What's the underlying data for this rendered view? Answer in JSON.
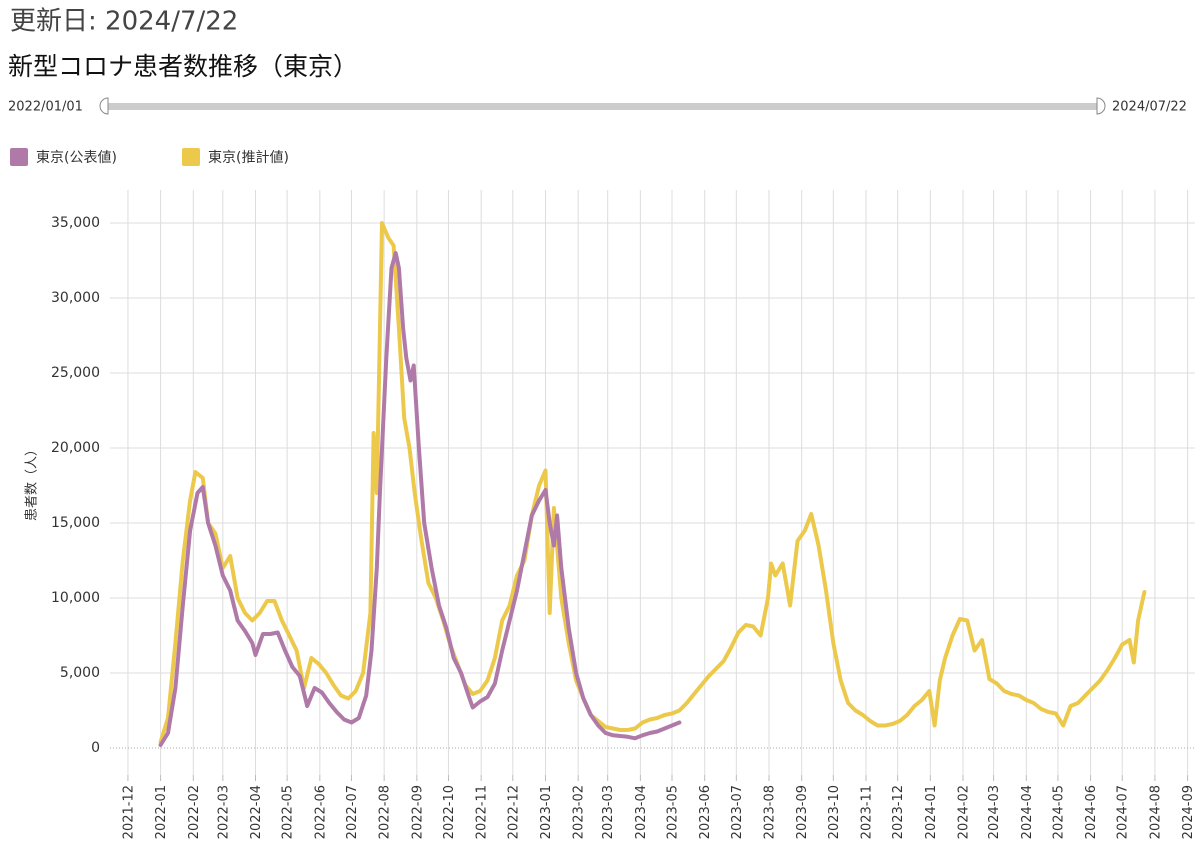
{
  "updated": "更新日: 2024/7/22",
  "slider": {
    "start": "2022/01/01",
    "end": "2024/07/22"
  },
  "chart_data": {
    "type": "line",
    "title": "新型コロナ患者数推移（東京）",
    "y_label": "患者数（人）",
    "xlim": [
      "2021-11-14",
      "2024-09-08"
    ],
    "xticks": [
      {
        "value": "2021-12-01",
        "label": "2021-12"
      },
      {
        "value": "2022-01-01",
        "label": "2022-01"
      },
      {
        "value": "2022-02-01",
        "label": "2022-02"
      },
      {
        "value": "2022-03-01",
        "label": "2022-03"
      },
      {
        "value": "2022-04-01",
        "label": "2022-04"
      },
      {
        "value": "2022-05-01",
        "label": "2022-05"
      },
      {
        "value": "2022-06-01",
        "label": "2022-06"
      },
      {
        "value": "2022-07-01",
        "label": "2022-07"
      },
      {
        "value": "2022-08-01",
        "label": "2022-08"
      },
      {
        "value": "2022-09-01",
        "label": "2022-09"
      },
      {
        "value": "2022-10-01",
        "label": "2022-10"
      },
      {
        "value": "2022-11-01",
        "label": "2022-11"
      },
      {
        "value": "2022-12-01",
        "label": "2022-12"
      },
      {
        "value": "2023-01-01",
        "label": "2023-01"
      },
      {
        "value": "2023-02-01",
        "label": "2023-02"
      },
      {
        "value": "2023-03-01",
        "label": "2023-03"
      },
      {
        "value": "2023-04-01",
        "label": "2023-04"
      },
      {
        "value": "2023-05-01",
        "label": "2023-05"
      },
      {
        "value": "2023-06-01",
        "label": "2023-06"
      },
      {
        "value": "2023-07-01",
        "label": "2023-07"
      },
      {
        "value": "2023-08-01",
        "label": "2023-08"
      },
      {
        "value": "2023-09-01",
        "label": "2023-09"
      },
      {
        "value": "2023-10-01",
        "label": "2023-10"
      },
      {
        "value": "2023-11-01",
        "label": "2023-11"
      },
      {
        "value": "2023-12-01",
        "label": "2023-12"
      },
      {
        "value": "2024-01-01",
        "label": "2024-01"
      },
      {
        "value": "2024-02-01",
        "label": "2024-02"
      },
      {
        "value": "2024-03-01",
        "label": "2024-03"
      },
      {
        "value": "2024-04-01",
        "label": "2024-04"
      },
      {
        "value": "2024-05-01",
        "label": "2024-05"
      },
      {
        "value": "2024-06-01",
        "label": "2024-06"
      },
      {
        "value": "2024-07-01",
        "label": "2024-07"
      },
      {
        "value": "2024-08-01",
        "label": "2024-08"
      },
      {
        "value": "2024-09-01",
        "label": "2024-09"
      }
    ],
    "ylim": [
      -1800,
      37200
    ],
    "yticks": [
      0,
      {
        "value": 5000,
        "label": "5,000"
      },
      {
        "value": 10000,
        "label": "10,000"
      },
      {
        "value": 15000,
        "label": "15,000"
      },
      {
        "value": 20000,
        "label": "20,000"
      },
      {
        "value": 25000,
        "label": "25,000"
      },
      {
        "value": 30000,
        "label": "30,000"
      },
      {
        "value": 35000,
        "label": "35,000"
      }
    ],
    "grid": true,
    "series": [
      {
        "name": "東京(公表値)",
        "color": "#b07aa8",
        "x": [
          "2022-01-01",
          "2022-01-08",
          "2022-01-15",
          "2022-01-22",
          "2022-01-29",
          "2022-02-05",
          "2022-02-10",
          "2022-02-15",
          "2022-02-22",
          "2022-03-01",
          "2022-03-08",
          "2022-03-15",
          "2022-03-22",
          "2022-03-29",
          "2022-04-01",
          "2022-04-08",
          "2022-04-15",
          "2022-04-22",
          "2022-04-29",
          "2022-05-06",
          "2022-05-13",
          "2022-05-20",
          "2022-05-27",
          "2022-06-03",
          "2022-06-10",
          "2022-06-17",
          "2022-06-24",
          "2022-07-01",
          "2022-07-08",
          "2022-07-15",
          "2022-07-20",
          "2022-07-25",
          "2022-07-28",
          "2022-08-03",
          "2022-08-08",
          "2022-08-12",
          "2022-08-15",
          "2022-08-19",
          "2022-08-22",
          "2022-08-26",
          "2022-08-29",
          "2022-09-03",
          "2022-09-08",
          "2022-09-15",
          "2022-09-22",
          "2022-09-29",
          "2022-10-06",
          "2022-10-13",
          "2022-10-20",
          "2022-10-24",
          "2022-10-31",
          "2022-11-07",
          "2022-11-14",
          "2022-11-21",
          "2022-11-28",
          "2022-12-05",
          "2022-12-12",
          "2022-12-19",
          "2022-12-26",
          "2023-01-01",
          "2023-01-05",
          "2023-01-09",
          "2023-01-12",
          "2023-01-16",
          "2023-01-23",
          "2023-01-30",
          "2023-02-06",
          "2023-02-13",
          "2023-02-20",
          "2023-02-27",
          "2023-03-06",
          "2023-03-13",
          "2023-03-20",
          "2023-03-27",
          "2023-04-03",
          "2023-04-10",
          "2023-04-17",
          "2023-04-24",
          "2023-05-01",
          "2023-05-08"
        ],
        "values": [
          200,
          1000,
          4000,
          9500,
          14500,
          17000,
          17400,
          15000,
          13500,
          11500,
          10500,
          8500,
          7800,
          7000,
          6200,
          7600,
          7600,
          7700,
          6500,
          5400,
          4800,
          2800,
          4000,
          3700,
          3000,
          2400,
          1900,
          1700,
          2000,
          3500,
          6500,
          12000,
          17000,
          26000,
          32000,
          33000,
          32000,
          28000,
          26000,
          24500,
          25500,
          20000,
          15000,
          12000,
          9500,
          8000,
          6000,
          5000,
          3500,
          2700,
          3100,
          3400,
          4300,
          6500,
          8500,
          10500,
          13000,
          15500,
          16500,
          17200,
          15000,
          13500,
          15500,
          12000,
          8000,
          5000,
          3300,
          2200,
          1500,
          1000,
          850,
          800,
          750,
          650,
          850,
          1000,
          1100,
          1300,
          1500,
          1700
        ]
      },
      {
        "name": "東京(推計値)",
        "color": "#ecc94b",
        "x": [
          "2022-01-01",
          "2022-01-08",
          "2022-01-15",
          "2022-01-22",
          "2022-01-29",
          "2022-02-03",
          "2022-02-10",
          "2022-02-15",
          "2022-02-22",
          "2022-03-01",
          "2022-03-08",
          "2022-03-15",
          "2022-03-22",
          "2022-03-29",
          "2022-04-05",
          "2022-04-12",
          "2022-04-19",
          "2022-04-26",
          "2022-05-03",
          "2022-05-10",
          "2022-05-17",
          "2022-05-24",
          "2022-05-31",
          "2022-06-07",
          "2022-06-14",
          "2022-06-21",
          "2022-06-28",
          "2022-07-05",
          "2022-07-12",
          "2022-07-19",
          "2022-07-22",
          "2022-07-25",
          "2022-07-30",
          "2022-08-05",
          "2022-08-10",
          "2022-08-15",
          "2022-08-20",
          "2022-08-25",
          "2022-08-30",
          "2022-09-05",
          "2022-09-12",
          "2022-09-19",
          "2022-09-26",
          "2022-10-03",
          "2022-10-10",
          "2022-10-17",
          "2022-10-24",
          "2022-10-31",
          "2022-11-07",
          "2022-11-14",
          "2022-11-21",
          "2022-11-28",
          "2022-12-05",
          "2022-12-12",
          "2022-12-19",
          "2022-12-26",
          "2023-01-01",
          "2023-01-05",
          "2023-01-09",
          "2023-01-16",
          "2023-01-23",
          "2023-01-30",
          "2023-02-06",
          "2023-02-13",
          "2023-02-20",
          "2023-02-27",
          "2023-03-06",
          "2023-03-13",
          "2023-03-20",
          "2023-03-27",
          "2023-04-03",
          "2023-04-10",
          "2023-04-17",
          "2023-04-24",
          "2023-05-01",
          "2023-05-08",
          "2023-05-15",
          "2023-05-22",
          "2023-05-29",
          "2023-06-05",
          "2023-06-12",
          "2023-06-19",
          "2023-06-26",
          "2023-07-03",
          "2023-07-10",
          "2023-07-17",
          "2023-07-24",
          "2023-07-31",
          "2023-08-03",
          "2023-08-07",
          "2023-08-14",
          "2023-08-21",
          "2023-08-28",
          "2023-09-04",
          "2023-09-10",
          "2023-09-17",
          "2023-09-24",
          "2023-10-01",
          "2023-10-08",
          "2023-10-15",
          "2023-10-22",
          "2023-10-29",
          "2023-11-05",
          "2023-11-12",
          "2023-11-19",
          "2023-11-26",
          "2023-12-03",
          "2023-12-10",
          "2023-12-17",
          "2023-12-24",
          "2023-12-31",
          "2024-01-05",
          "2024-01-10",
          "2024-01-15",
          "2024-01-22",
          "2024-01-29",
          "2024-02-05",
          "2024-02-12",
          "2024-02-19",
          "2024-02-26",
          "2024-03-04",
          "2024-03-11",
          "2024-03-18",
          "2024-03-25",
          "2024-04-01",
          "2024-04-08",
          "2024-04-15",
          "2024-04-22",
          "2024-04-29",
          "2024-05-06",
          "2024-05-13",
          "2024-05-20",
          "2024-05-27",
          "2024-06-03",
          "2024-06-10",
          "2024-06-17",
          "2024-06-24",
          "2024-07-01",
          "2024-07-08",
          "2024-07-12",
          "2024-07-16",
          "2024-07-22"
        ],
        "values": [
          400,
          2000,
          7000,
          12500,
          16500,
          18400,
          18000,
          15000,
          14300,
          12000,
          12800,
          10000,
          9000,
          8500,
          9000,
          9800,
          9800,
          8500,
          7500,
          6500,
          4000,
          6000,
          5600,
          5000,
          4200,
          3500,
          3300,
          3800,
          5000,
          9000,
          21000,
          17000,
          35000,
          34000,
          33500,
          28000,
          22000,
          20000,
          17000,
          14000,
          11000,
          10000,
          8500,
          6800,
          5500,
          4200,
          3600,
          3800,
          4500,
          6000,
          8500,
          9500,
          11500,
          12500,
          15500,
          17500,
          18500,
          9000,
          16000,
          10000,
          7000,
          4500,
          3300,
          2200,
          1800,
          1400,
          1300,
          1200,
          1200,
          1300,
          1700,
          1900,
          2000,
          2200,
          2300,
          2500,
          3000,
          3600,
          4200,
          4800,
          5300,
          5800,
          6700,
          7700,
          8200,
          8100,
          7500,
          10000,
          12300,
          11500,
          12300,
          9500,
          13800,
          14500,
          15600,
          13500,
          10500,
          7000,
          4500,
          3000,
          2500,
          2200,
          1800,
          1500,
          1500,
          1600,
          1800,
          2200,
          2800,
          3200,
          3800,
          1500,
          4500,
          6000,
          7500,
          8600,
          8500,
          6500,
          7200,
          4600,
          4300,
          3800,
          3600,
          3500,
          3200,
          3000,
          2600,
          2400,
          2300,
          1500,
          2800,
          3000,
          3500,
          4000,
          4500,
          5200,
          6000,
          6900,
          7200,
          5700,
          8500,
          10400
        ]
      }
    ]
  }
}
